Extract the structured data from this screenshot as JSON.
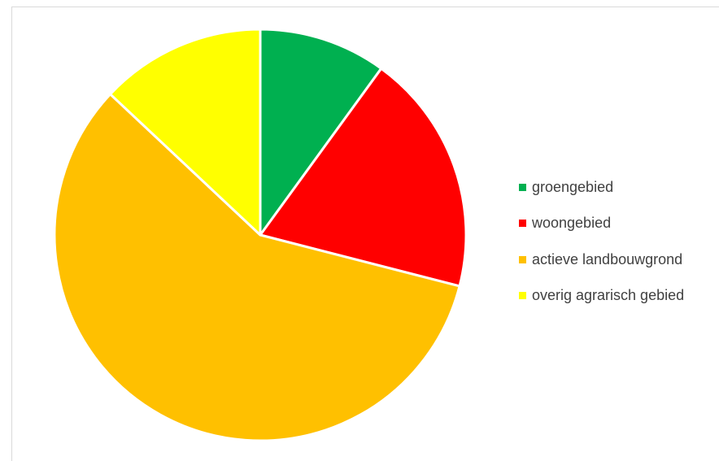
{
  "chart_data": {
    "type": "pie",
    "categories": [
      "groengebied",
      "woongebied",
      "actieve landbouwgrond",
      "overig agrarisch gebied"
    ],
    "values": [
      10,
      19,
      58,
      13
    ],
    "colors": [
      "#00b050",
      "#ff0000",
      "#ffc000",
      "#ffff00"
    ],
    "legend_position": "right",
    "start_angle_deg": 0,
    "direction": "clockwise"
  }
}
